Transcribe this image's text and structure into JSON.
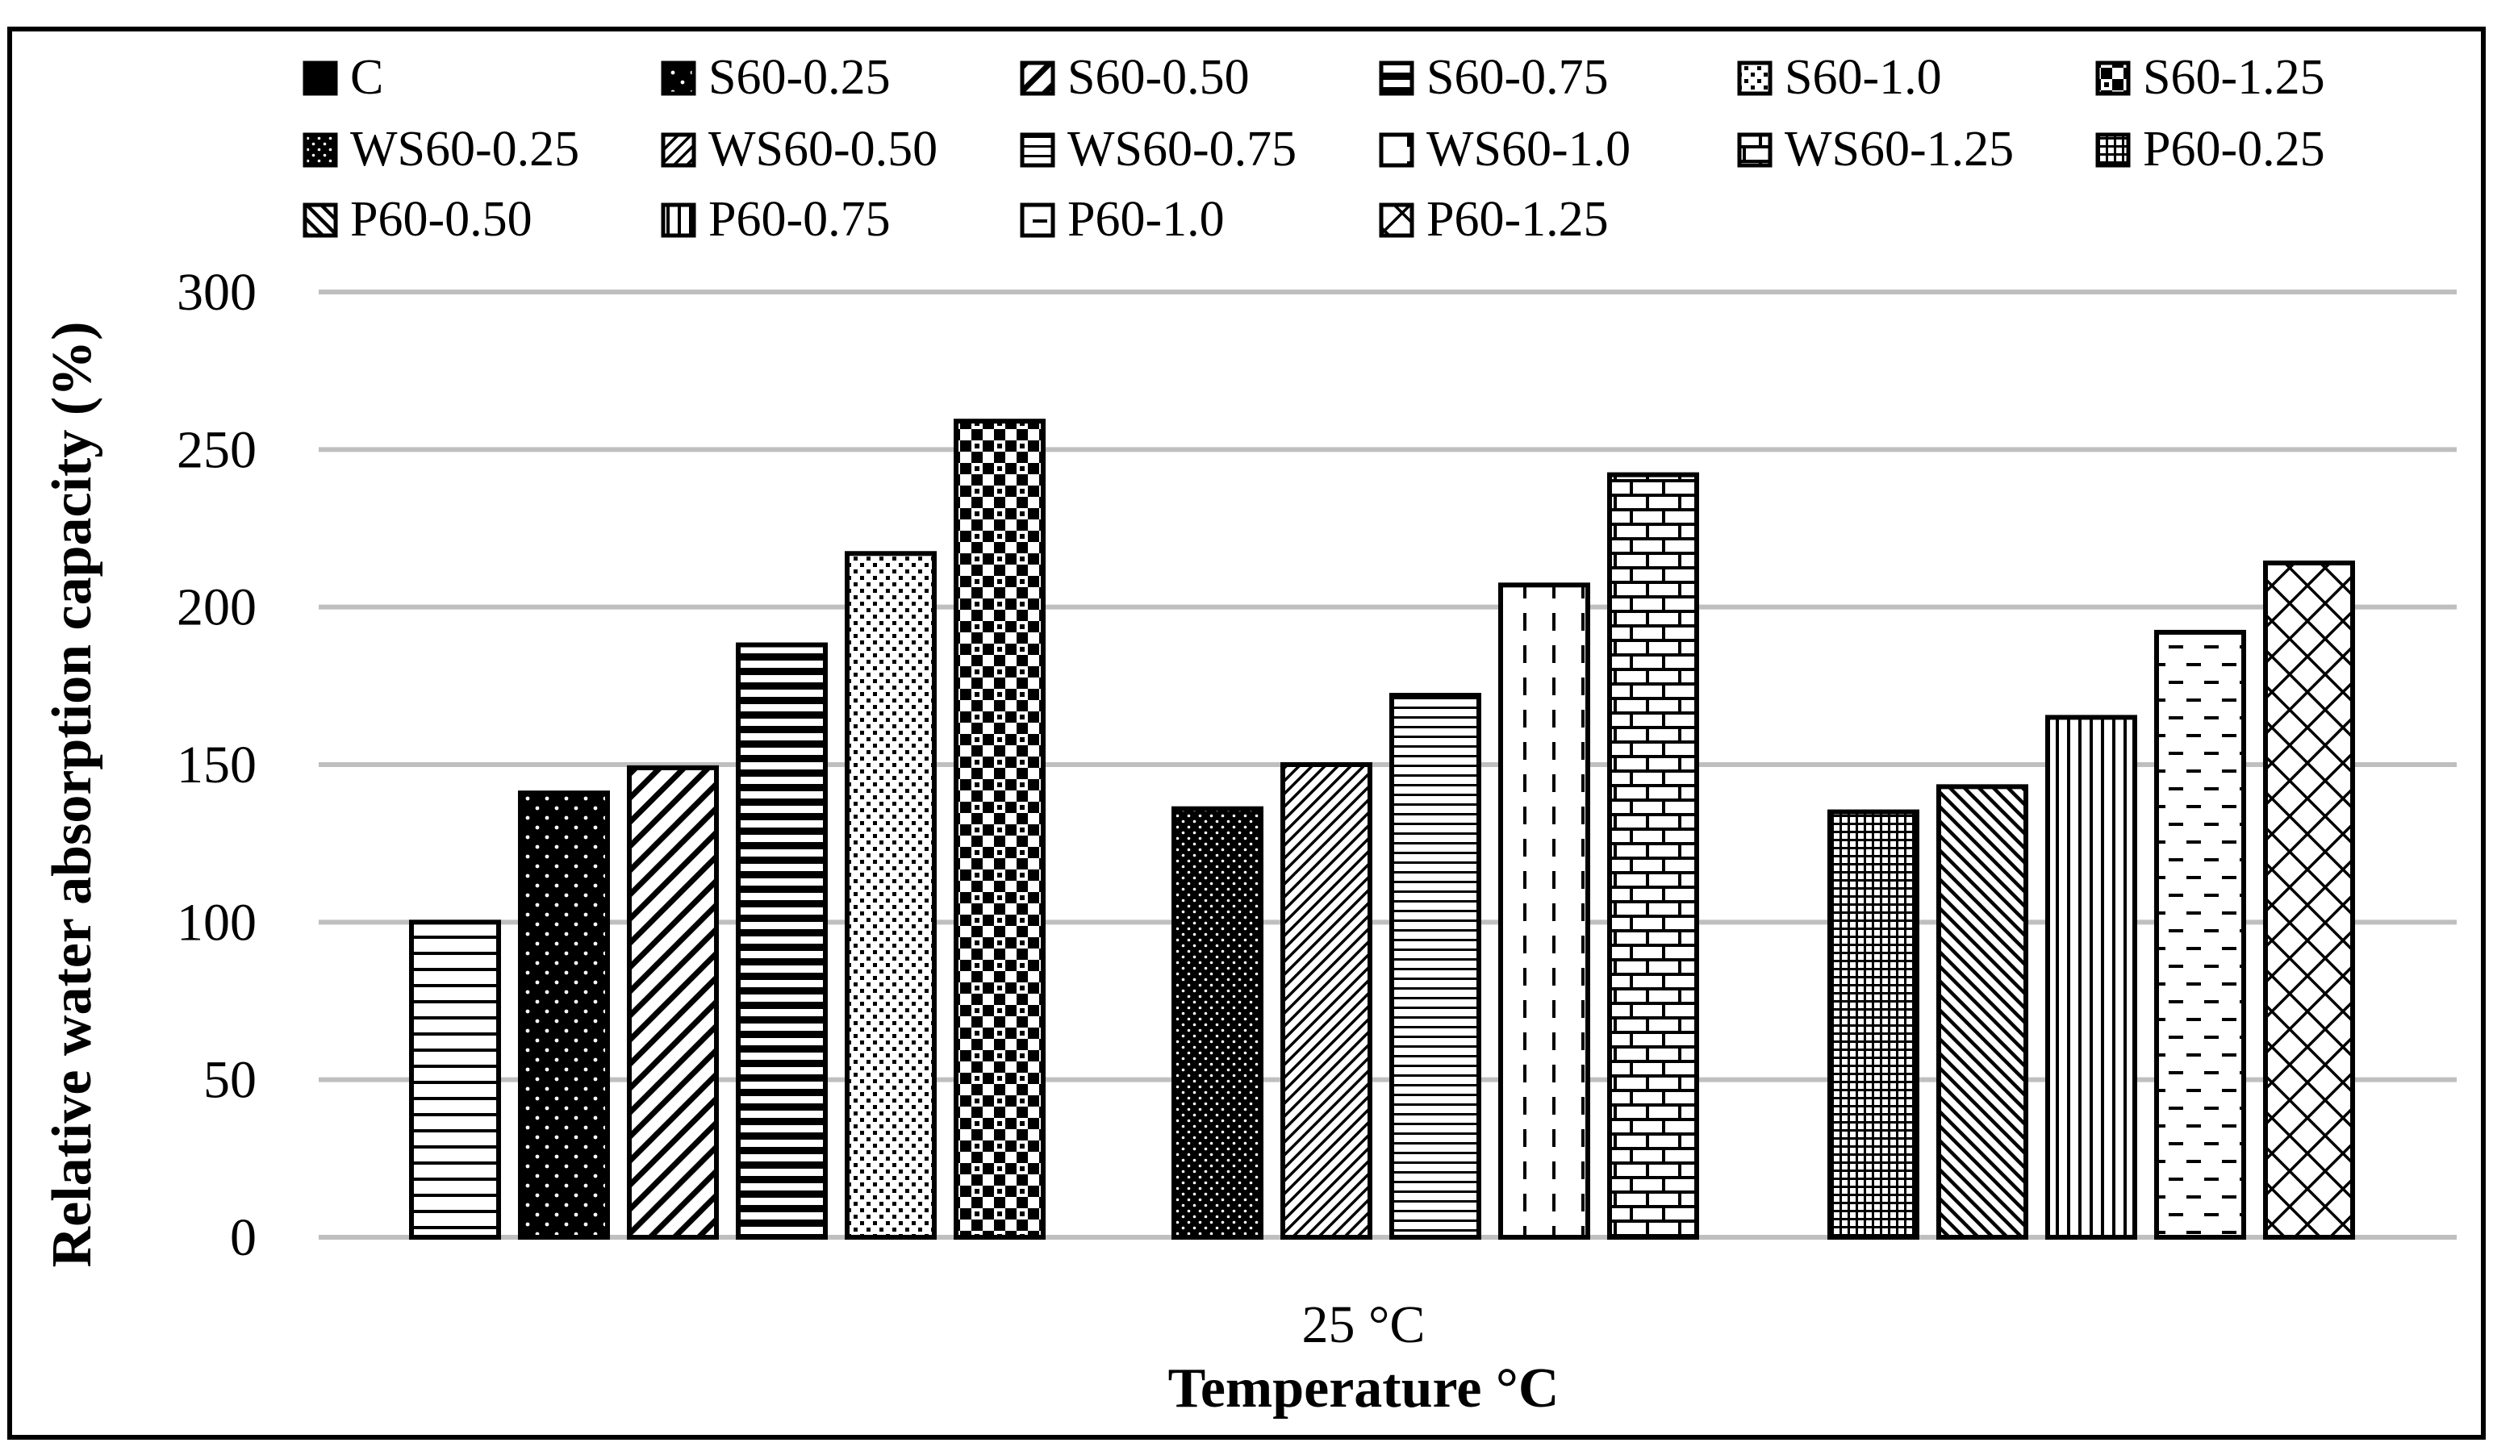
{
  "chart_data": {
    "type": "bar",
    "title": "",
    "xlabel": "Temperature °C",
    "ylabel": "Relative water absorption capacity (%)",
    "categories": [
      "25 °C"
    ],
    "ylim": [
      0,
      300
    ],
    "yticks": [
      0,
      50,
      100,
      150,
      200,
      250,
      300
    ],
    "grid": true,
    "legend_position": "top",
    "series": [
      {
        "name": "C",
        "values": [
          100
        ],
        "pattern": "hlines-wide",
        "legend_pattern": "solid"
      },
      {
        "name": "S60-0.25",
        "values": [
          141
        ],
        "pattern": "dots-black",
        "legend_pattern": "dots-black"
      },
      {
        "name": "S60-0.50",
        "values": [
          149
        ],
        "pattern": "diag-wide",
        "legend_pattern": "diag-wide"
      },
      {
        "name": "S60-0.75",
        "values": [
          188
        ],
        "pattern": "hlines-thick",
        "legend_pattern": "hlines-thick"
      },
      {
        "name": "S60-1.0",
        "values": [
          217
        ],
        "pattern": "dots-white",
        "legend_pattern": "dots-white"
      },
      {
        "name": "S60-1.25",
        "values": [
          259
        ],
        "pattern": "checker",
        "legend_pattern": "checker"
      },
      {
        "name": "WS60-0.25",
        "values": [
          136
        ],
        "pattern": "dots-black-dense",
        "legend_pattern": "dots-black-dense"
      },
      {
        "name": "WS60-0.50",
        "values": [
          150
        ],
        "pattern": "diag-thin",
        "legend_pattern": "diag-thin"
      },
      {
        "name": "WS60-0.75",
        "values": [
          172
        ],
        "pattern": "hlines-thin",
        "legend_pattern": "hlines-thin"
      },
      {
        "name": "WS60-1.0",
        "values": [
          207
        ],
        "pattern": "vdash",
        "legend_pattern": "vdash"
      },
      {
        "name": "WS60-1.25",
        "values": [
          242
        ],
        "pattern": "brick",
        "legend_pattern": "brick"
      },
      {
        "name": "P60-0.25",
        "values": [
          135
        ],
        "pattern": "grid-dense",
        "legend_pattern": "grid-dense"
      },
      {
        "name": "P60-0.50",
        "values": [
          143
        ],
        "pattern": "backdiag",
        "legend_pattern": "backdiag"
      },
      {
        "name": "P60-0.75",
        "values": [
          165
        ],
        "pattern": "vlines",
        "legend_pattern": "vlines"
      },
      {
        "name": "P60-1.0",
        "values": [
          192
        ],
        "pattern": "hdash",
        "legend_pattern": "hdash"
      },
      {
        "name": "P60-1.25",
        "values": [
          214
        ],
        "pattern": "diamond",
        "legend_pattern": "diamond"
      }
    ]
  }
}
